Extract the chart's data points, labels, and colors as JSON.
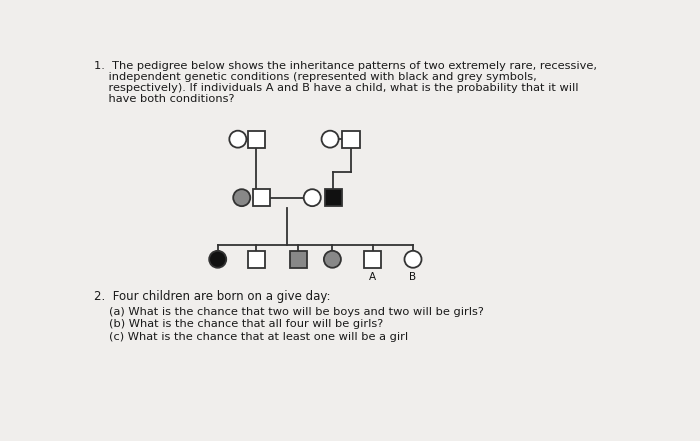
{
  "background_color": "#f0eeec",
  "text_color": "#1a1a1a",
  "question1_lines": [
    "1.  The pedigree below shows the inheritance patterns of two extremely rare, recessive,",
    "    independent genetic conditions (represented with black and grey symbols,",
    "    respectively). If individuals A and B have a child, what is the probability that it will",
    "    have both conditions?"
  ],
  "question2_line": "2.  Four children are born on a give day:",
  "q2a": "(a) What is the chance that two will be boys and two will be girls?",
  "q2b": "(b) What is the chance that all four will be girls?",
  "q2c": "(c) What is the chance that at least one will be a girl",
  "WHITE": "#ffffff",
  "BLACK": "#111111",
  "GREY": "#888888",
  "LINE": "#333333"
}
